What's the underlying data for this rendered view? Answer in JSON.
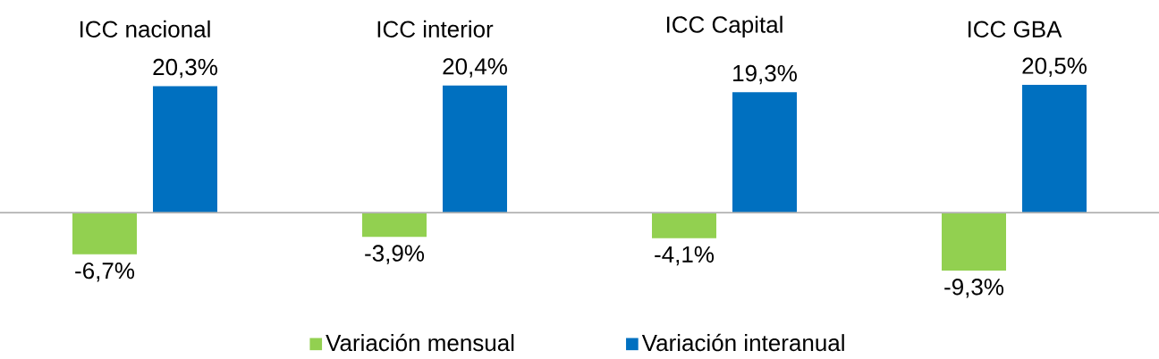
{
  "chart_data": {
    "type": "bar",
    "categories": [
      "ICC nacional",
      "ICC interior",
      "ICC Capital",
      "ICC GBA"
    ],
    "series": [
      {
        "name": "Variación mensual",
        "color": "#92d050",
        "values": [
          -6.7,
          -3.9,
          -4.1,
          -9.3
        ],
        "value_labels": [
          "-6,7%",
          "-3,9%",
          "-4,1%",
          "-9,3%"
        ]
      },
      {
        "name": "Variación interanual",
        "color": "#0070c0",
        "values": [
          20.3,
          20.4,
          19.3,
          20.5
        ],
        "value_labels": [
          "20,3%",
          "20,4%",
          "19,3%",
          "20,5%"
        ]
      }
    ],
    "legend": "bottom"
  }
}
